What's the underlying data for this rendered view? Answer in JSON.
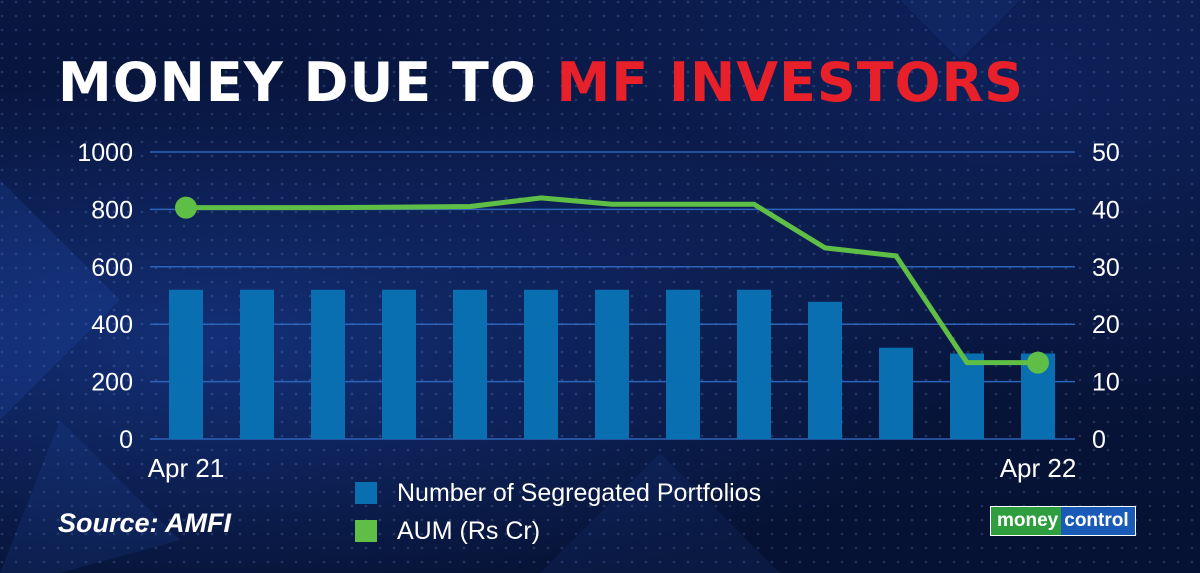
{
  "title": {
    "part1": "MONEY DUE TO ",
    "part2": "MF INVESTORS"
  },
  "colors": {
    "background": "#061233",
    "title_highlight": "#e8202a",
    "bar": "#0a6fb0",
    "line": "#5fbe45",
    "gridline": "#2d63b8"
  },
  "chart_data": {
    "type": "bar",
    "x": [
      "Apr 21",
      "",
      "",
      "",
      "",
      "",
      "",
      "",
      "",
      "",
      "",
      "",
      "Apr 22"
    ],
    "x_tick_labels": [
      "Apr 21",
      "Apr 22"
    ],
    "y_left_ticks": [
      "1000",
      "800",
      "600",
      "400",
      "200",
      "0"
    ],
    "y_right_ticks": [
      "50",
      "40",
      "30",
      "20",
      "10",
      "0"
    ],
    "y_left_range": [
      0,
      1000
    ],
    "y_right_range": [
      0,
      50
    ],
    "grid": true,
    "legend_position": "bottom-center",
    "series": [
      {
        "name": "Number of Segregated Portfolios",
        "type": "bar",
        "axis": "left",
        "values": [
          520,
          520,
          520,
          520,
          520,
          520,
          520,
          520,
          520,
          478,
          318,
          298,
          298
        ]
      },
      {
        "name": "AUM (Rs Cr)",
        "type": "line",
        "axis": "right",
        "values": [
          40.3,
          40.3,
          40.3,
          40.4,
          40.5,
          42,
          40.9,
          40.9,
          40.9,
          33.3,
          31.9,
          13.3,
          13.3
        ],
        "markers_on": [
          0,
          12
        ]
      }
    ]
  },
  "legend": {
    "bar_label": "Number of Segregated Portfolios",
    "line_label": "AUM (Rs Cr)"
  },
  "source": "Source: AMFI",
  "logo": {
    "part1": "money",
    "part2": "control"
  }
}
